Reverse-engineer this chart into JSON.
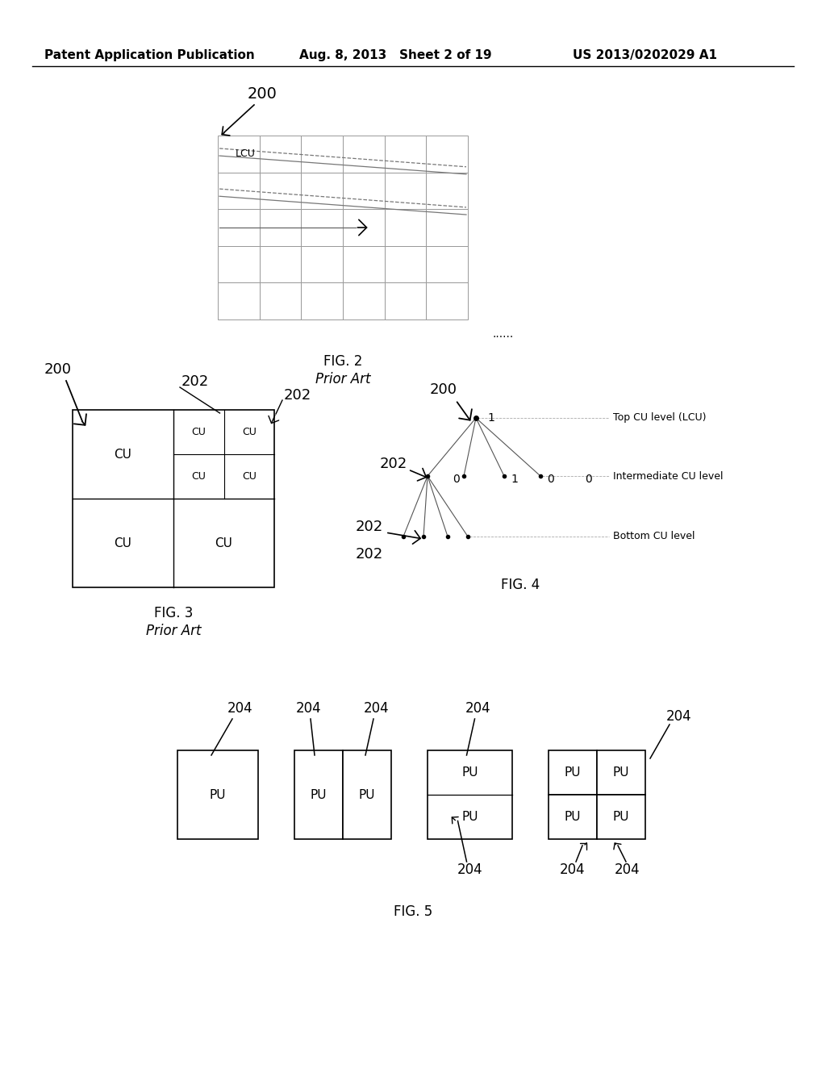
{
  "header_left": "Patent Application Publication",
  "header_mid": "Aug. 8, 2013   Sheet 2 of 19",
  "header_right": "US 2013/0202029 A1",
  "fig2_caption": "FIG. 2",
  "fig2_subcaption": "Prior Art",
  "fig2_lcu": "LCU",
  "fig2_label": "200",
  "fig2_dots": "......",
  "fig3_caption": "FIG. 3",
  "fig3_subcaption": "Prior Art",
  "fig3_label_200": "200",
  "fig3_label_202a": "202",
  "fig3_label_202b": "202",
  "fig4_caption": "FIG. 4",
  "fig4_label_200": "200",
  "fig4_label_202a": "202",
  "fig4_label_202b": "202",
  "fig4_label_202c": "202",
  "fig4_legend": [
    "Top CU level (LCU)",
    "Intermediate CU level",
    "Bottom CU level"
  ],
  "fig5_caption": "FIG. 5",
  "bg_color": "#ffffff",
  "grid_color": "#999999",
  "text_color": "#000000"
}
